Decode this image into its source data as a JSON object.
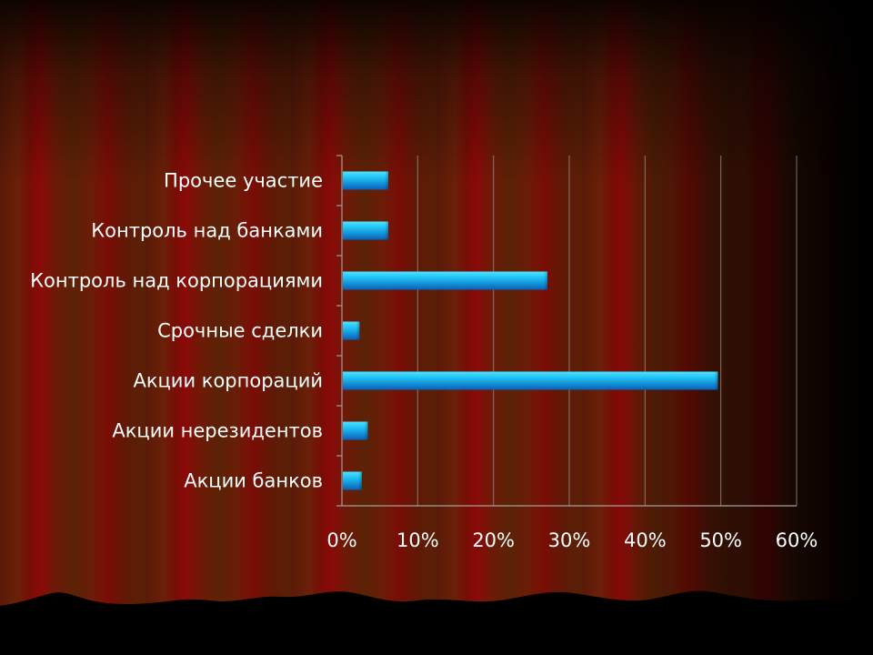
{
  "colors": {
    "bar_light": "#4fe3ff",
    "bar_mid": "#1ec0f4",
    "bar_dark": "#0a5fb8",
    "grid": "#a0a0a0",
    "text": "#ffffff"
  },
  "chart_data": {
    "type": "bar",
    "orientation": "horizontal",
    "categories": [
      "Прочее участие",
      "Контроль над банками",
      "Контроль над корпорациями",
      "Срочные сделки",
      "Акции корпораций",
      "Акции нерезидентов",
      "Акции банков"
    ],
    "values": [
      6,
      6,
      27,
      2.2,
      49.5,
      3.3,
      2.5
    ],
    "unit": "%",
    "xlim": [
      0,
      60
    ],
    "ticks": [
      0,
      10,
      20,
      30,
      40,
      50,
      60
    ],
    "tick_labels": [
      "0%",
      "10%",
      "20%",
      "30%",
      "40%",
      "50%",
      "60%"
    ],
    "grid": true,
    "legend": "none",
    "title": "",
    "xlabel": "",
    "ylabel": ""
  }
}
